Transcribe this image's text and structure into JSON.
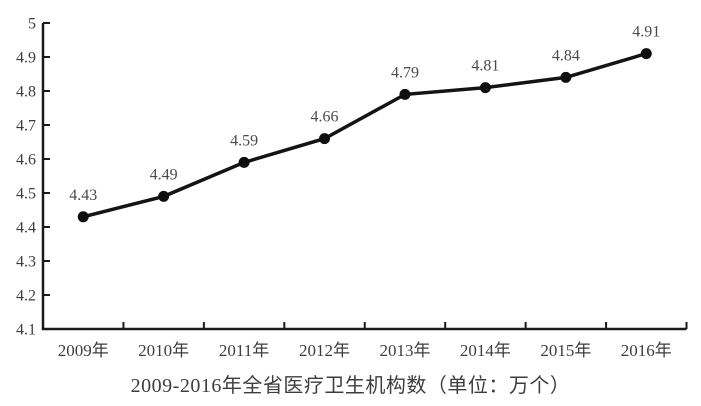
{
  "chart_data": {
    "type": "line",
    "title": "2009-2016年全省医疗卫生机构数（单位：万个）",
    "xlabel": "",
    "ylabel": "",
    "categories": [
      "2009年",
      "2010年",
      "2011年",
      "2012年",
      "2013年",
      "2014年",
      "2015年",
      "2016年"
    ],
    "series": [
      {
        "name": "医疗卫生机构数",
        "values": [
          4.43,
          4.49,
          4.59,
          4.66,
          4.79,
          4.81,
          4.84,
          4.91
        ],
        "point_labels": [
          "4.43",
          "4.49",
          "4.59",
          "4.66",
          "4.79",
          "4.81",
          "4.84",
          "4.91"
        ]
      }
    ],
    "ylim": [
      4.1,
      5.0
    ],
    "ytick_labels": [
      "4.1",
      "4.2",
      "4.3",
      "4.4",
      "4.5",
      "4.6",
      "4.7",
      "4.8",
      "4.9",
      "5"
    ],
    "grid": false,
    "legend": "none",
    "marker": "filled-circle",
    "colors": {
      "line": "#141414",
      "marker": "#0e0e0e",
      "axis": "#1a1a1a",
      "tick_text": "#3d3d3d",
      "point_label_text": "#4a4a4a",
      "background": "#ffffff"
    }
  }
}
